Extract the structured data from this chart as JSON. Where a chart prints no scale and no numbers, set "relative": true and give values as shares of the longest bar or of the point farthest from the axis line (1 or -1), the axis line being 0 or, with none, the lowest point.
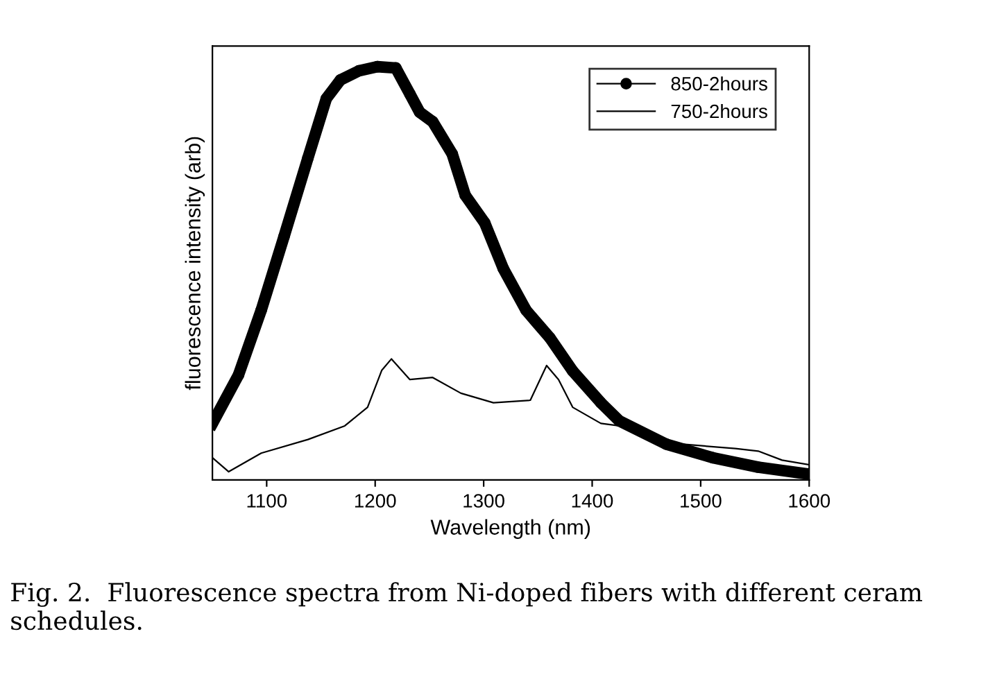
{
  "chart_data": {
    "type": "line",
    "relative": true,
    "xlabel": "Wavelength (nm)",
    "ylabel": "fluorescence intensity (arb)",
    "xlim": [
      1050,
      1600
    ],
    "xticks": [
      1100,
      1200,
      1300,
      1400,
      1500,
      1600
    ],
    "tick_labels": "x",
    "legend": "top right",
    "grid": false,
    "annotations": [
      "Fig. 2.  Fluorescence spectra from Ni-doped fibers with different ceram schedules."
    ],
    "series": [
      {
        "name": "850-2hours",
        "color": "#000000",
        "marker": "circle",
        "line_style": "solid",
        "x": [
          1050,
          1074,
          1095,
          1116,
          1138,
          1155,
          1168,
          1185,
          1202,
          1219,
          1232,
          1241,
          1253,
          1271,
          1283,
          1301,
          1318,
          1339,
          1361,
          1382,
          1408,
          1425,
          1468,
          1511,
          1553,
          1600
        ],
        "values": [
          0.137,
          0.254,
          0.411,
          0.589,
          0.779,
          0.923,
          0.968,
          0.99,
          1.0,
          0.997,
          0.934,
          0.89,
          0.867,
          0.789,
          0.689,
          0.622,
          0.512,
          0.411,
          0.344,
          0.264,
          0.187,
          0.143,
          0.087,
          0.054,
          0.031,
          0.014
        ]
      },
      {
        "name": "750-2hours",
        "color": "#000000",
        "marker": "none",
        "line_style": "solid",
        "x": [
          1050,
          1065,
          1095,
          1138,
          1172,
          1193,
          1206,
          1215,
          1232,
          1253,
          1279,
          1309,
          1343,
          1358,
          1369,
          1382,
          1408,
          1425,
          1468,
          1532,
          1553,
          1575,
          1600
        ],
        "values": [
          0.054,
          0.02,
          0.065,
          0.098,
          0.131,
          0.176,
          0.265,
          0.293,
          0.243,
          0.248,
          0.21,
          0.187,
          0.193,
          0.277,
          0.243,
          0.176,
          0.137,
          0.131,
          0.09,
          0.076,
          0.07,
          0.048,
          0.037
        ]
      }
    ]
  }
}
